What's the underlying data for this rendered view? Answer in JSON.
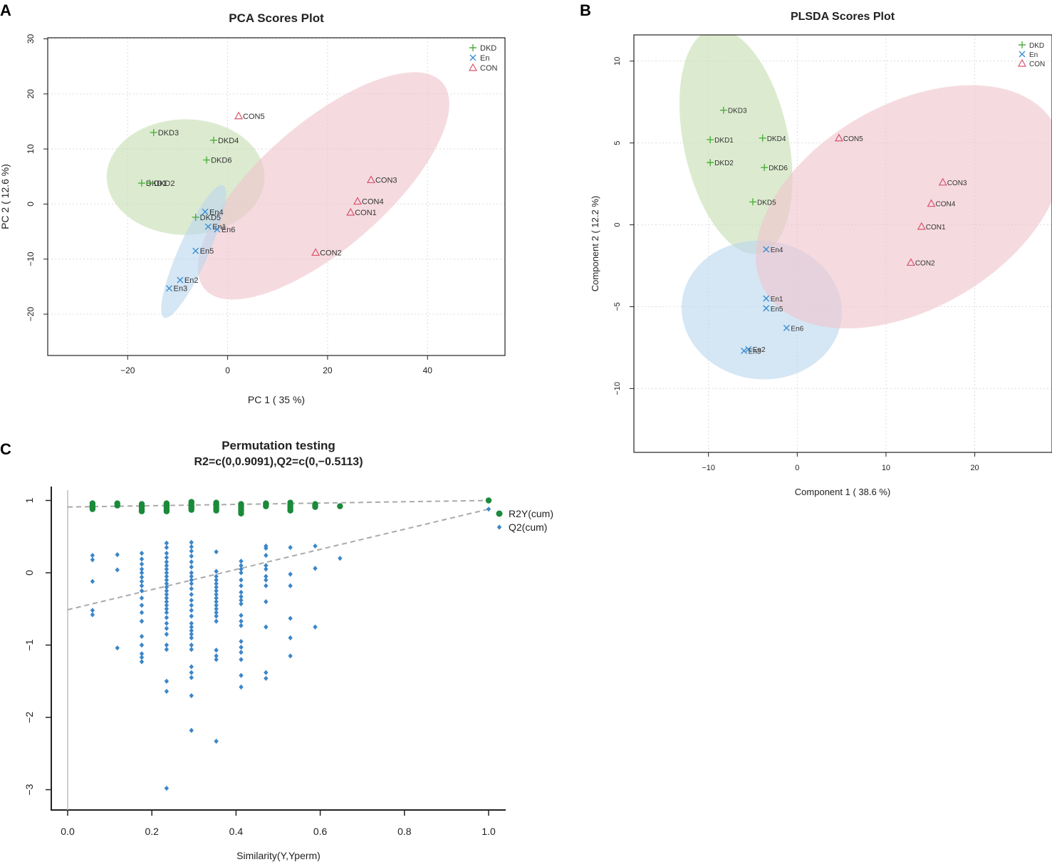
{
  "panels": {
    "a": {
      "letter": "A"
    },
    "b": {
      "letter": "B"
    },
    "c": {
      "letter": "C"
    }
  },
  "colors": {
    "DKD": "#4caf3c",
    "En": "#3a8fd6",
    "CON": "#d9546c",
    "DKD_fill": "#c6dfb2",
    "En_fill": "#bcd6ee",
    "CON_fill": "#efc5cd",
    "r2y": "#1b8a3a",
    "q2": "#3b86c9",
    "trend": "#aaaaaa"
  },
  "chart_data": [
    {
      "id": "pca",
      "type": "scatter",
      "title": "PCA Scores Plot",
      "xlabel": "PC 1 ( 35 %)",
      "ylabel": "PC 2 ( 12.6 %)",
      "xlim": [
        -36,
        55.5
      ],
      "ylim": [
        -27.5,
        30.2
      ],
      "xticks": [
        -20,
        0,
        20,
        40
      ],
      "yticks": [
        -20,
        -10,
        0,
        10,
        20,
        30
      ],
      "grid": true,
      "legend": [
        "DKD",
        "En",
        "CON"
      ],
      "legend_position": "top-right",
      "points": [
        {
          "label": "DKD1",
          "group": "DKD",
          "x": -17.2,
          "y": 3.8
        },
        {
          "label": "DKD2",
          "group": "DKD",
          "x": -15.6,
          "y": 3.8
        },
        {
          "label": "DKD3",
          "group": "DKD",
          "x": -14.8,
          "y": 13.0
        },
        {
          "label": "DKD4",
          "group": "DKD",
          "x": -2.8,
          "y": 11.6
        },
        {
          "label": "DKD5",
          "group": "DKD",
          "x": -6.4,
          "y": -2.4
        },
        {
          "label": "DKD6",
          "group": "DKD",
          "x": -4.2,
          "y": 8.0
        },
        {
          "label": "En1",
          "group": "En",
          "x": -3.9,
          "y": -4.1
        },
        {
          "label": "En2",
          "group": "En",
          "x": -9.5,
          "y": -13.8
        },
        {
          "label": "En3",
          "group": "En",
          "x": -11.7,
          "y": -15.3
        },
        {
          "label": "En4",
          "group": "En",
          "x": -4.5,
          "y": -1.4
        },
        {
          "label": "En5",
          "group": "En",
          "x": -6.4,
          "y": -8.5
        },
        {
          "label": "En6",
          "group": "En",
          "x": -2.1,
          "y": -4.6
        },
        {
          "label": "CON1",
          "group": "CON",
          "x": 24.6,
          "y": -1.5
        },
        {
          "label": "CON2",
          "group": "CON",
          "x": 17.6,
          "y": -8.8
        },
        {
          "label": "CON3",
          "group": "CON",
          "x": 28.7,
          "y": 4.4
        },
        {
          "label": "CON4",
          "group": "CON",
          "x": 26.0,
          "y": 0.5
        },
        {
          "label": "CON5",
          "group": "CON",
          "x": 2.2,
          "y": 16.0
        }
      ],
      "ellipses": [
        {
          "group": "DKD",
          "cx": -8.4,
          "cy": 4.9,
          "rx": 15.8,
          "ry": 10.5,
          "angle_deg": 0
        },
        {
          "group": "CON",
          "cx": 19.2,
          "cy": 3.3,
          "rx": 31.5,
          "ry": 11.4,
          "angle_deg": -41
        },
        {
          "group": "En",
          "cx": -6.8,
          "cy": -8.6,
          "rx": 14.5,
          "ry": 2.7,
          "angle_deg": -66
        }
      ]
    },
    {
      "id": "plsda",
      "type": "scatter",
      "title": "PLSDA Scores Plot",
      "xlabel": "Component 1 ( 38.6 %)",
      "ylabel": "Component 2 ( 12.2 %)",
      "xlim": [
        -18.4,
        28.7
      ],
      "ylim": [
        -13.9,
        11.6
      ],
      "xticks": [
        -10,
        0,
        10,
        20
      ],
      "yticks": [
        -10,
        -5,
        0,
        5,
        10
      ],
      "grid": true,
      "legend": [
        "DKD",
        "En",
        "CON"
      ],
      "legend_position": "top-right",
      "points": [
        {
          "label": "DKD1",
          "group": "DKD",
          "x": -9.8,
          "y": 5.2
        },
        {
          "label": "DKD2",
          "group": "DKD",
          "x": -9.8,
          "y": 3.8
        },
        {
          "label": "DKD3",
          "group": "DKD",
          "x": -8.3,
          "y": 7.0
        },
        {
          "label": "DKD4",
          "group": "DKD",
          "x": -3.9,
          "y": 5.3
        },
        {
          "label": "DKD5",
          "group": "DKD",
          "x": -5.0,
          "y": 1.4
        },
        {
          "label": "DKD6",
          "group": "DKD",
          "x": -3.7,
          "y": 3.5
        },
        {
          "label": "En1",
          "group": "En",
          "x": -3.5,
          "y": -4.5
        },
        {
          "label": "En2",
          "group": "En",
          "x": -5.5,
          "y": -7.6
        },
        {
          "label": "En3",
          "group": "En",
          "x": -6.0,
          "y": -7.7
        },
        {
          "label": "En4",
          "group": "En",
          "x": -3.5,
          "y": -1.5
        },
        {
          "label": "En5",
          "group": "En",
          "x": -3.5,
          "y": -5.1
        },
        {
          "label": "En6",
          "group": "En",
          "x": -1.2,
          "y": -6.3
        },
        {
          "label": "CON1",
          "group": "CON",
          "x": 14.0,
          "y": -0.1
        },
        {
          "label": "CON2",
          "group": "CON",
          "x": 12.8,
          "y": -2.3
        },
        {
          "label": "CON3",
          "group": "CON",
          "x": 16.4,
          "y": 2.6
        },
        {
          "label": "CON4",
          "group": "CON",
          "x": 15.1,
          "y": 1.3
        },
        {
          "label": "CON5",
          "group": "CON",
          "x": 4.7,
          "y": 5.3
        }
      ],
      "ellipses": [
        {
          "group": "DKD",
          "cx": -6.9,
          "cy": 5.1,
          "rx": 5.9,
          "ry": 7.0,
          "angle_deg": -12
        },
        {
          "group": "En",
          "cx": -4.0,
          "cy": -5.2,
          "rx": 7.8,
          "ry": 4.9,
          "angle_deg": -84
        },
        {
          "group": "CON",
          "cx": 12.6,
          "cy": 1.1,
          "rx": 11.5,
          "ry": 10.2,
          "angle_deg": 60
        }
      ]
    },
    {
      "id": "permutation",
      "type": "scatter",
      "title": "Permutation testing",
      "subtitle": "R2=c(0,0.9091),Q2=c(0,−0.5113)",
      "xlabel": "Similarity(Y,Yperm)",
      "ylabel": "",
      "xlim": [
        -0.08,
        1.04
      ],
      "ylim": [
        -3.3,
        1.2
      ],
      "xticks": [
        0.0,
        0.2,
        0.4,
        0.6,
        0.8,
        1.0
      ],
      "xtick_labels": [
        "0.0",
        "0.2",
        "0.4",
        "0.6",
        "0.8",
        "1.0"
      ],
      "yticks": [
        -3,
        -2,
        -1,
        0,
        1
      ],
      "grid": false,
      "legend": [
        "R2Y(cum)",
        "Q2(cum)"
      ],
      "legend_position": "top-right",
      "r2_line": [
        0,
        0.9091
      ],
      "q2_line": [
        0,
        -0.5113
      ],
      "series": [
        {
          "name": "R2Y(cum)",
          "groups": [
            {
              "x": 0.059,
              "values": [
                0.96,
                0.93,
                0.9,
                0.88
              ]
            },
            {
              "x": 0.118,
              "values": [
                0.96,
                0.93
              ]
            },
            {
              "x": 0.176,
              "values": [
                0.95,
                0.92,
                0.9,
                0.87,
                0.85
              ]
            },
            {
              "x": 0.235,
              "values": [
                0.96,
                0.94,
                0.92,
                0.9,
                0.87,
                0.85
              ]
            },
            {
              "x": 0.294,
              "values": [
                0.98,
                0.96,
                0.93,
                0.91,
                0.89,
                0.87
              ]
            },
            {
              "x": 0.353,
              "values": [
                0.97,
                0.95,
                0.93,
                0.9,
                0.88,
                0.86
              ]
            },
            {
              "x": 0.412,
              "values": [
                0.95,
                0.93,
                0.9,
                0.87,
                0.85,
                0.82
              ]
            },
            {
              "x": 0.471,
              "values": [
                0.96,
                0.94,
                0.92
              ]
            },
            {
              "x": 0.529,
              "values": [
                0.97,
                0.94,
                0.91,
                0.88,
                0.86
              ]
            },
            {
              "x": 0.588,
              "values": [
                0.95,
                0.93,
                0.91
              ]
            },
            {
              "x": 0.647,
              "values": [
                0.92
              ]
            },
            {
              "x": 1.0,
              "values": [
                1.0
              ]
            }
          ]
        },
        {
          "name": "Q2(cum)",
          "groups": [
            {
              "x": 0.059,
              "values": [
                0.24,
                0.18,
                -0.12,
                -0.52,
                -0.58
              ]
            },
            {
              "x": 0.118,
              "values": [
                0.25,
                0.04,
                -1.04
              ]
            },
            {
              "x": 0.176,
              "values": [
                0.27,
                0.19,
                0.12,
                0.05,
                0.0,
                -0.06,
                -0.12,
                -0.18,
                -0.25,
                -0.35,
                -0.45,
                -0.55,
                -0.67,
                -0.88,
                -1.0,
                -1.12,
                -1.17,
                -1.23
              ]
            },
            {
              "x": 0.235,
              "values": [
                0.41,
                0.35,
                0.27,
                0.21,
                0.15,
                0.1,
                0.05,
                0.0,
                -0.05,
                -0.1,
                -0.15,
                -0.2,
                -0.25,
                -0.3,
                -0.35,
                -0.4,
                -0.45,
                -0.5,
                -0.55,
                -0.62,
                -0.7,
                -0.77,
                -0.85,
                -1.0,
                -1.06,
                -1.5,
                -1.64,
                -2.98
              ]
            },
            {
              "x": 0.294,
              "values": [
                0.42,
                0.36,
                0.3,
                0.23,
                0.15,
                0.08,
                0.0,
                -0.05,
                -0.1,
                -0.15,
                -0.22,
                -0.3,
                -0.38,
                -0.45,
                -0.52,
                -0.6,
                -0.7,
                -0.75,
                -0.8,
                -0.85,
                -0.9,
                -1.0,
                -1.06,
                -1.3,
                -1.38,
                -1.45,
                -1.7,
                -2.18
              ]
            },
            {
              "x": 0.353,
              "values": [
                0.29,
                0.02,
                -0.05,
                -0.1,
                -0.15,
                -0.2,
                -0.25,
                -0.3,
                -0.35,
                -0.4,
                -0.45,
                -0.5,
                -0.55,
                -0.6,
                -0.67,
                -1.07,
                -1.15,
                -1.2,
                -2.33
              ]
            },
            {
              "x": 0.412,
              "values": [
                0.16,
                0.1,
                0.05,
                0.0,
                -0.1,
                -0.18,
                -0.27,
                -0.33,
                -0.38,
                -0.43,
                -0.59,
                -0.67,
                -0.73,
                -0.95,
                -1.03,
                -1.1,
                -1.2,
                -1.42,
                -1.58
              ]
            },
            {
              "x": 0.471,
              "values": [
                0.37,
                0.34,
                0.24,
                0.1,
                0.05,
                -0.05,
                -0.1,
                -0.18,
                -0.4,
                -0.75,
                -1.38,
                -1.46
              ]
            },
            {
              "x": 0.529,
              "values": [
                0.35,
                -0.02,
                -0.18,
                -0.63,
                -0.9,
                -1.15
              ]
            },
            {
              "x": 0.588,
              "values": [
                0.37,
                0.06,
                -0.75
              ]
            },
            {
              "x": 0.647,
              "values": [
                0.2
              ]
            },
            {
              "x": 1.0,
              "values": [
                0.88
              ]
            }
          ]
        }
      ]
    }
  ]
}
